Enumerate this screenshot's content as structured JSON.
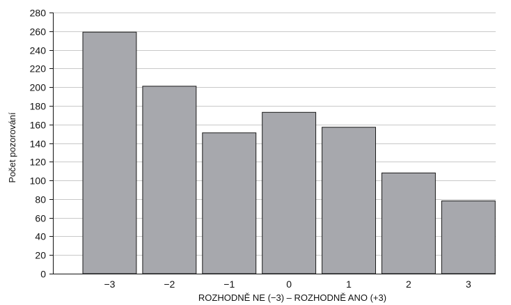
{
  "chart_data": {
    "type": "bar",
    "categories": [
      "−3",
      "−2",
      "−1",
      "0",
      "1",
      "2",
      "3"
    ],
    "values": [
      259,
      201,
      151,
      173,
      157,
      108,
      78
    ],
    "xlabel": "ROZHODNĚ NE (−3)  –  ROZHODNĚ ANO (+3)",
    "ylabel": "Počet pozorování",
    "ylim": [
      0,
      280
    ],
    "yticks": [
      0,
      20,
      40,
      60,
      80,
      100,
      120,
      140,
      160,
      180,
      200,
      220,
      240,
      260,
      280
    ],
    "grid": true,
    "colors": {
      "bar_fill": "#a7a8ad",
      "bar_stroke": "#1a1a1a",
      "grid": "#c8c8c8",
      "axis": "#111111"
    }
  }
}
